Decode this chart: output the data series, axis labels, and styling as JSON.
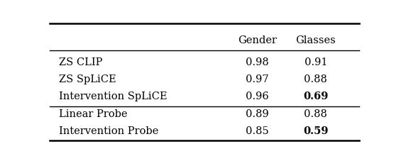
{
  "row_labels": [
    "ZS CLIP",
    "ZS SpLiCE",
    "Intervention SpLiCE",
    "Linear Probe",
    "Intervention Probe"
  ],
  "col_headers": [
    "Gender",
    "Glasses"
  ],
  "gender_vals": [
    "0.98",
    "0.97",
    "0.96",
    "0.89",
    "0.85"
  ],
  "glasses_vals": [
    "0.91",
    "0.88",
    "0.69",
    "0.88",
    "0.59"
  ],
  "gender_bold": [
    false,
    false,
    false,
    false,
    false
  ],
  "glasses_bold": [
    false,
    false,
    true,
    false,
    true
  ],
  "group_separator_after_row": 2,
  "background_color": "#ffffff",
  "text_color": "#000000",
  "font_size": 10.5,
  "header_font_size": 10.5
}
